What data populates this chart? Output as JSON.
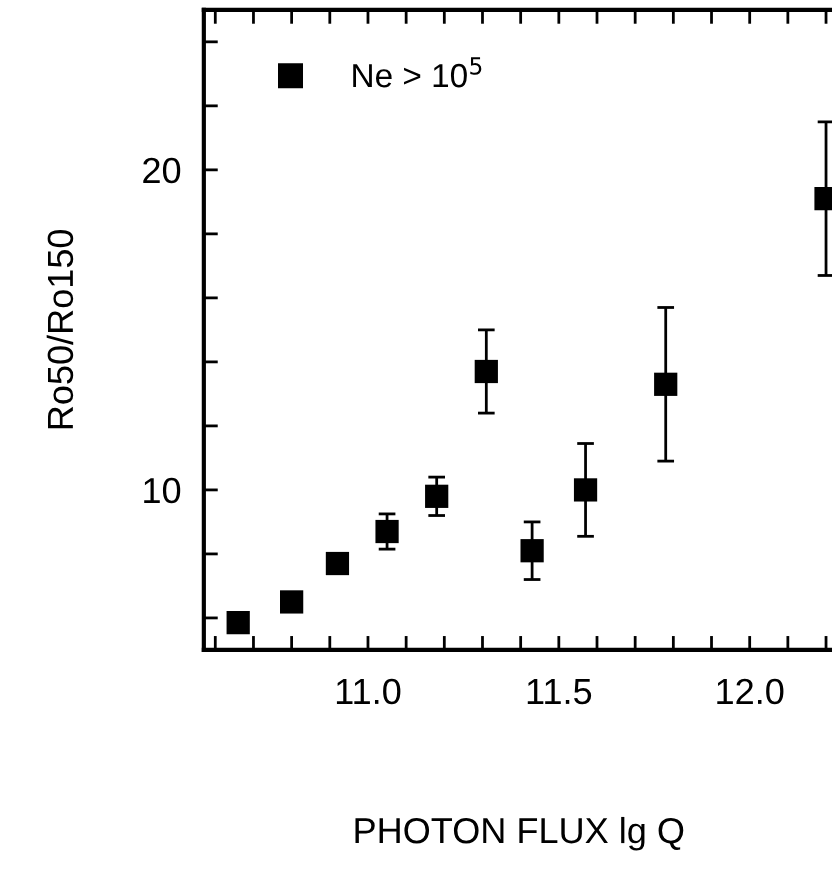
{
  "chart_data": {
    "type": "scatter",
    "xlabel": "PHOTON FLUX lg Q",
    "ylabel": "Ro50/Ro150",
    "xlim": [
      10.57,
      12.22
    ],
    "ylim": [
      5,
      25
    ],
    "xticks": [
      {
        "value": 10.6,
        "label": null
      },
      {
        "value": 10.7,
        "label": null
      },
      {
        "value": 10.8,
        "label": null
      },
      {
        "value": 10.9,
        "label": null
      },
      {
        "value": 11.0,
        "label": "11.0"
      },
      {
        "value": 11.1,
        "label": null
      },
      {
        "value": 11.2,
        "label": null
      },
      {
        "value": 11.3,
        "label": null
      },
      {
        "value": 11.4,
        "label": null
      },
      {
        "value": 11.5,
        "label": "11.5"
      },
      {
        "value": 11.6,
        "label": null
      },
      {
        "value": 11.7,
        "label": null
      },
      {
        "value": 11.8,
        "label": null
      },
      {
        "value": 11.9,
        "label": null
      },
      {
        "value": 12.0,
        "label": "12.0"
      },
      {
        "value": 12.1,
        "label": null
      },
      {
        "value": 12.2,
        "label": null
      }
    ],
    "yticks": [
      {
        "value": 6,
        "label": null
      },
      {
        "value": 8,
        "label": null
      },
      10,
      {
        "value": 12,
        "label": null
      },
      {
        "value": 14,
        "label": null
      },
      {
        "value": 16,
        "label": null
      },
      {
        "value": 18,
        "label": null
      },
      20,
      {
        "value": 22,
        "label": null
      },
      {
        "value": 24,
        "label": null
      }
    ],
    "grid": false,
    "legend": "top left",
    "marker": "square",
    "series": [
      {
        "name": "Ne > 10$^{5}$",
        "color": "#000000",
        "x": [
          10.66,
          10.8,
          10.92,
          11.05,
          11.18,
          11.31,
          11.43,
          11.57,
          11.78,
          12.2
        ],
        "values": [
          5.85,
          6.5,
          7.7,
          8.7,
          9.8,
          13.7,
          8.1,
          10.0,
          13.3,
          19.1
        ],
        "errors": [
          null,
          null,
          0.3,
          0.55,
          0.6,
          1.3,
          0.9,
          1.45,
          2.4,
          2.4
        ]
      }
    ]
  }
}
